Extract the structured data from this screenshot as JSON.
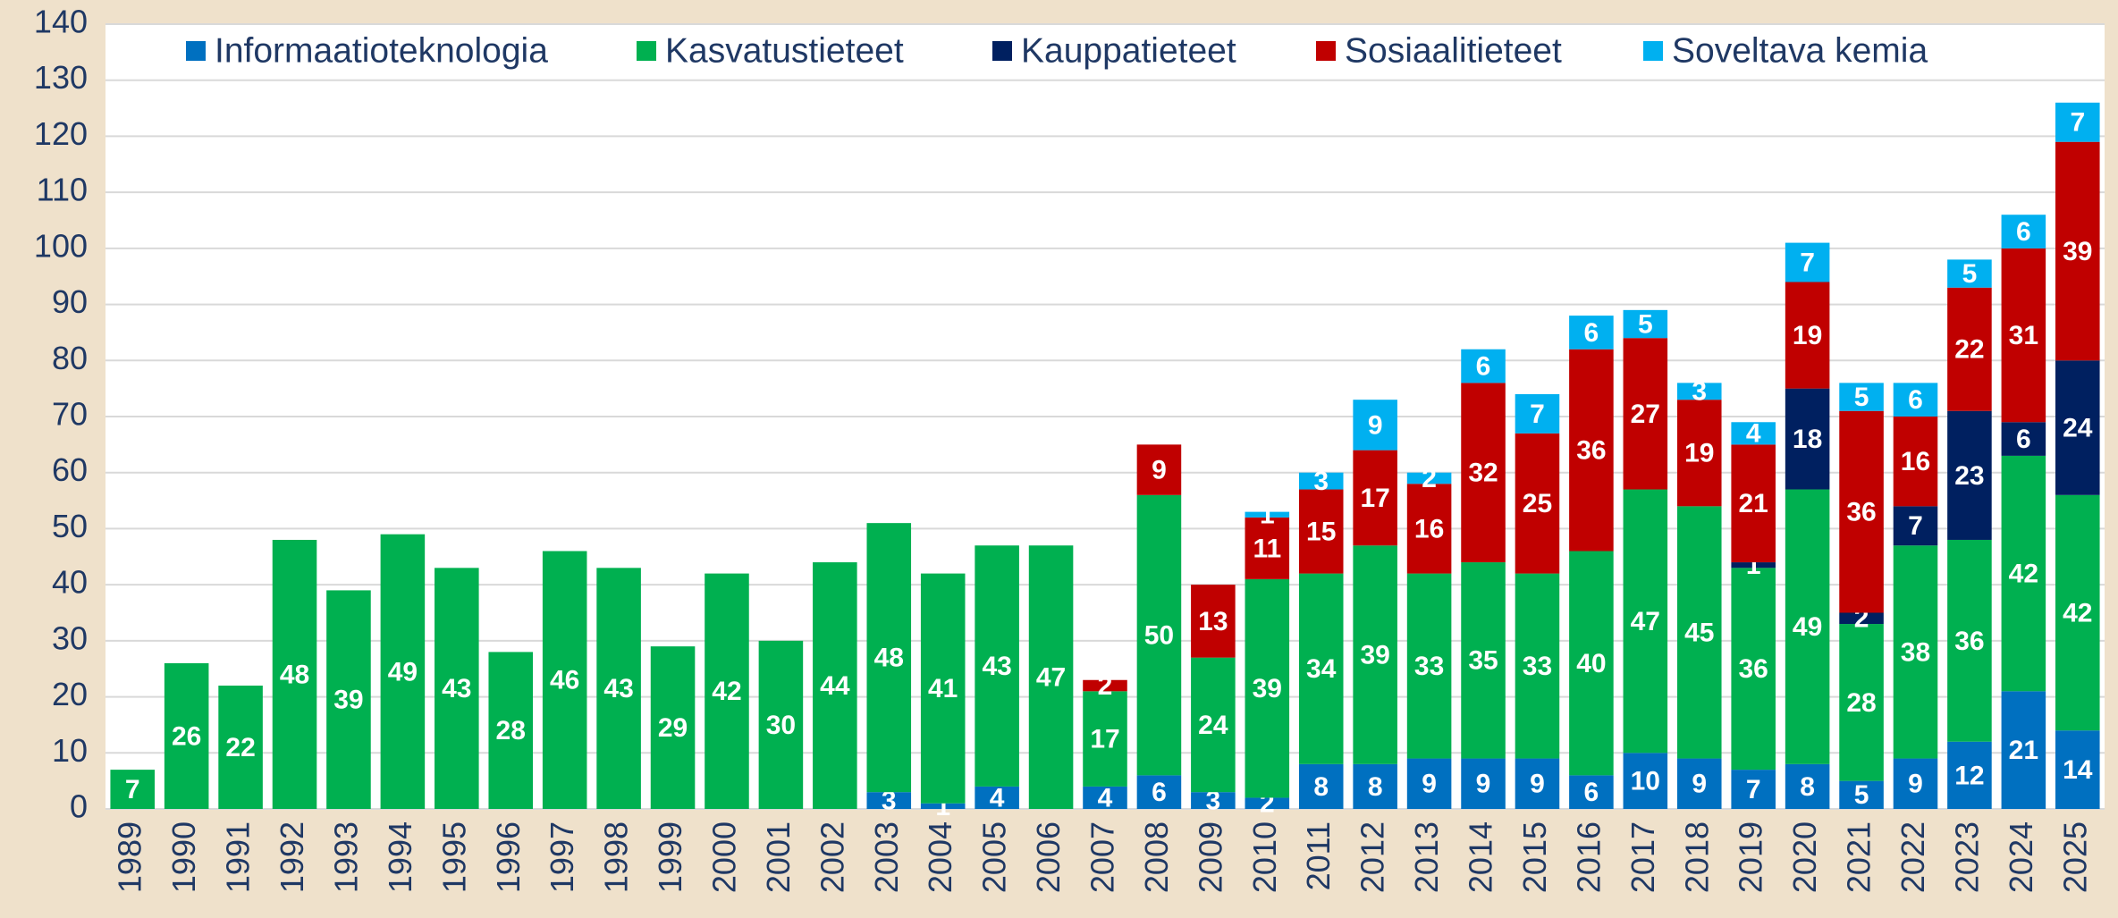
{
  "chart_data": {
    "type": "stacked_bar",
    "categories": [
      "1989",
      "1990",
      "1991",
      "1992",
      "1993",
      "1994",
      "1995",
      "1996",
      "1997",
      "1998",
      "1999",
      "2000",
      "2001",
      "2002",
      "2003",
      "2004",
      "2005",
      "2006",
      "2007",
      "2008",
      "2009",
      "2010",
      "2011",
      "2012",
      "2013",
      "2014",
      "2015",
      "2016",
      "2017",
      "2018",
      "2019",
      "2020",
      "2021",
      "2022",
      "2023",
      "2024",
      "2025"
    ],
    "series": [
      {
        "name": "Informaatioteknologia",
        "color": "#0070c0",
        "values": [
          null,
          null,
          null,
          null,
          null,
          null,
          null,
          null,
          null,
          null,
          null,
          null,
          null,
          null,
          3,
          1,
          4,
          null,
          4,
          6,
          3,
          2,
          8,
          8,
          9,
          9,
          9,
          6,
          10,
          9,
          7,
          8,
          5,
          9,
          12,
          21,
          14
        ]
      },
      {
        "name": "Kasvatustieteet",
        "color": "#00b050",
        "values": [
          7,
          26,
          22,
          48,
          39,
          49,
          43,
          28,
          46,
          43,
          29,
          42,
          30,
          44,
          48,
          41,
          43,
          47,
          17,
          50,
          24,
          39,
          34,
          39,
          33,
          35,
          33,
          40,
          47,
          45,
          36,
          49,
          28,
          38,
          36,
          42,
          42
        ]
      },
      {
        "name": "Kauppatieteet",
        "color": "#002060",
        "values": [
          null,
          null,
          null,
          null,
          null,
          null,
          null,
          null,
          null,
          null,
          null,
          null,
          null,
          null,
          null,
          null,
          null,
          null,
          null,
          null,
          null,
          null,
          null,
          null,
          null,
          null,
          null,
          null,
          null,
          null,
          1,
          18,
          2,
          7,
          23,
          6,
          24
        ]
      },
      {
        "name": "Sosiaalitieteet",
        "color": "#c00000",
        "values": [
          null,
          null,
          null,
          null,
          null,
          null,
          null,
          null,
          null,
          null,
          null,
          null,
          null,
          null,
          null,
          null,
          null,
          null,
          2,
          9,
          13,
          11,
          15,
          17,
          16,
          32,
          25,
          36,
          27,
          19,
          21,
          19,
          36,
          16,
          22,
          31,
          39
        ]
      },
      {
        "name": "Soveltava kemia",
        "color": "#00b0f0",
        "values": [
          null,
          null,
          null,
          null,
          null,
          null,
          null,
          null,
          null,
          null,
          null,
          null,
          null,
          null,
          null,
          null,
          null,
          null,
          null,
          null,
          null,
          1,
          3,
          9,
          2,
          6,
          7,
          6,
          5,
          3,
          4,
          7,
          5,
          6,
          5,
          6,
          7
        ]
      }
    ],
    "ylim": [
      0,
      140
    ],
    "yticks": [
      0,
      10,
      20,
      30,
      40,
      50,
      60,
      70,
      80,
      90,
      100,
      110,
      120,
      130,
      140
    ],
    "grid": true,
    "legend": "top"
  }
}
